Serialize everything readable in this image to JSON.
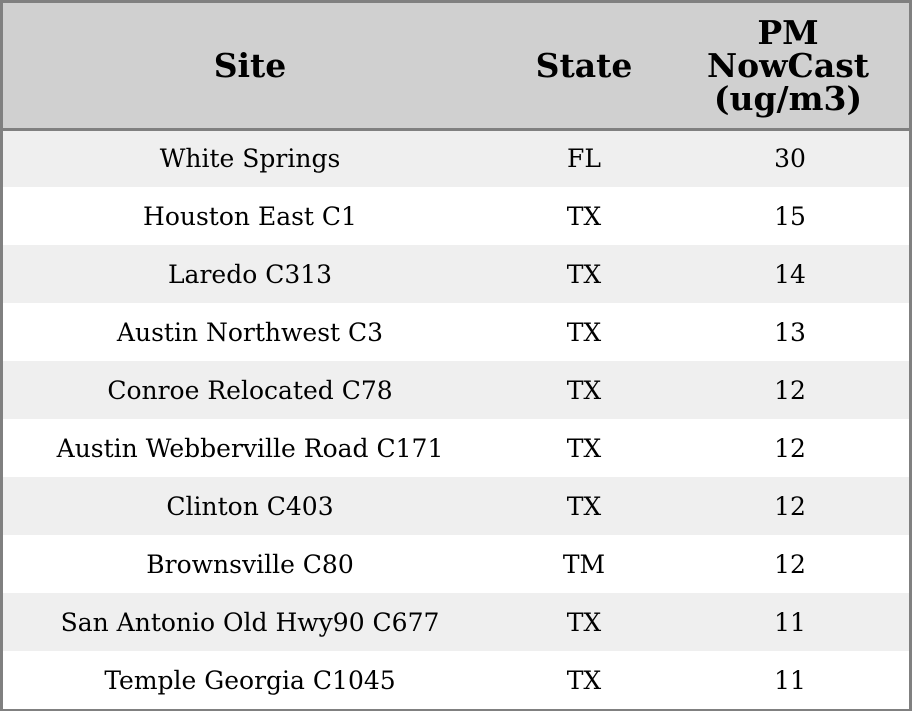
{
  "chart_data": {
    "type": "table",
    "columns": [
      "Site",
      "State",
      "PM NowCast (ug/m3)"
    ],
    "header_lines": {
      "site": [
        "Site"
      ],
      "state": [
        "State"
      ],
      "pm": [
        "PM",
        "NowCast",
        "(ug/m3)"
      ]
    },
    "rows": [
      {
        "site": "White Springs",
        "state": "FL",
        "pm": "30"
      },
      {
        "site": "Houston East C1",
        "state": "TX",
        "pm": "15"
      },
      {
        "site": "Laredo C313",
        "state": "TX",
        "pm": "14"
      },
      {
        "site": "Austin Northwest C3",
        "state": "TX",
        "pm": "13"
      },
      {
        "site": "Conroe Relocated C78",
        "state": "TX",
        "pm": "12"
      },
      {
        "site": "Austin Webberville Road C171",
        "state": "TX",
        "pm": "12"
      },
      {
        "site": "Clinton C403",
        "state": "TX",
        "pm": "12"
      },
      {
        "site": "Brownsville C80",
        "state": "TM",
        "pm": "12"
      },
      {
        "site": "San Antonio Old Hwy90 C677",
        "state": "TX",
        "pm": "11"
      },
      {
        "site": "Temple Georgia C1045",
        "state": "TX",
        "pm": "11"
      }
    ]
  },
  "colors": {
    "header_bg": "#d0d0d0",
    "row_alt_bg": "#efefef",
    "row_bg": "#ffffff",
    "border": "#808080",
    "text": "#000000"
  }
}
